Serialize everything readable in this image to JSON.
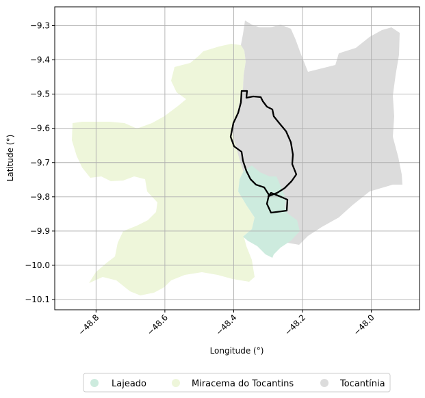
{
  "map": {
    "xlabel": "Longitude (°)",
    "ylabel": "Latitude (°)",
    "x_ticks": [
      -48.8,
      -48.6,
      -48.4,
      -48.2,
      -48.0
    ],
    "x_tick_labels": [
      "−48.8",
      "−48.6",
      "−48.4",
      "−48.2",
      "−48.0"
    ],
    "y_ticks": [
      -9.3,
      -9.4,
      -9.5,
      -9.6,
      -9.7,
      -9.8,
      -9.9,
      -10.0,
      -10.1
    ],
    "y_tick_labels": [
      "−9.3",
      "−9.4",
      "−9.5",
      "−9.6",
      "−9.7",
      "−9.8",
      "−9.9",
      "−10.0",
      "−10.1"
    ],
    "xlim": [
      -48.92,
      -47.86
    ],
    "ylim": [
      -10.13,
      -9.245
    ],
    "grid": true,
    "legend_position": "bottom-center",
    "regions": [
      {
        "name": "Lajeado",
        "color": "#cdebde"
      },
      {
        "name": "Miracema do Tocantins",
        "color": "#eef6da"
      },
      {
        "name": "Tocantínia",
        "color": "#dcdcdc"
      }
    ]
  }
}
